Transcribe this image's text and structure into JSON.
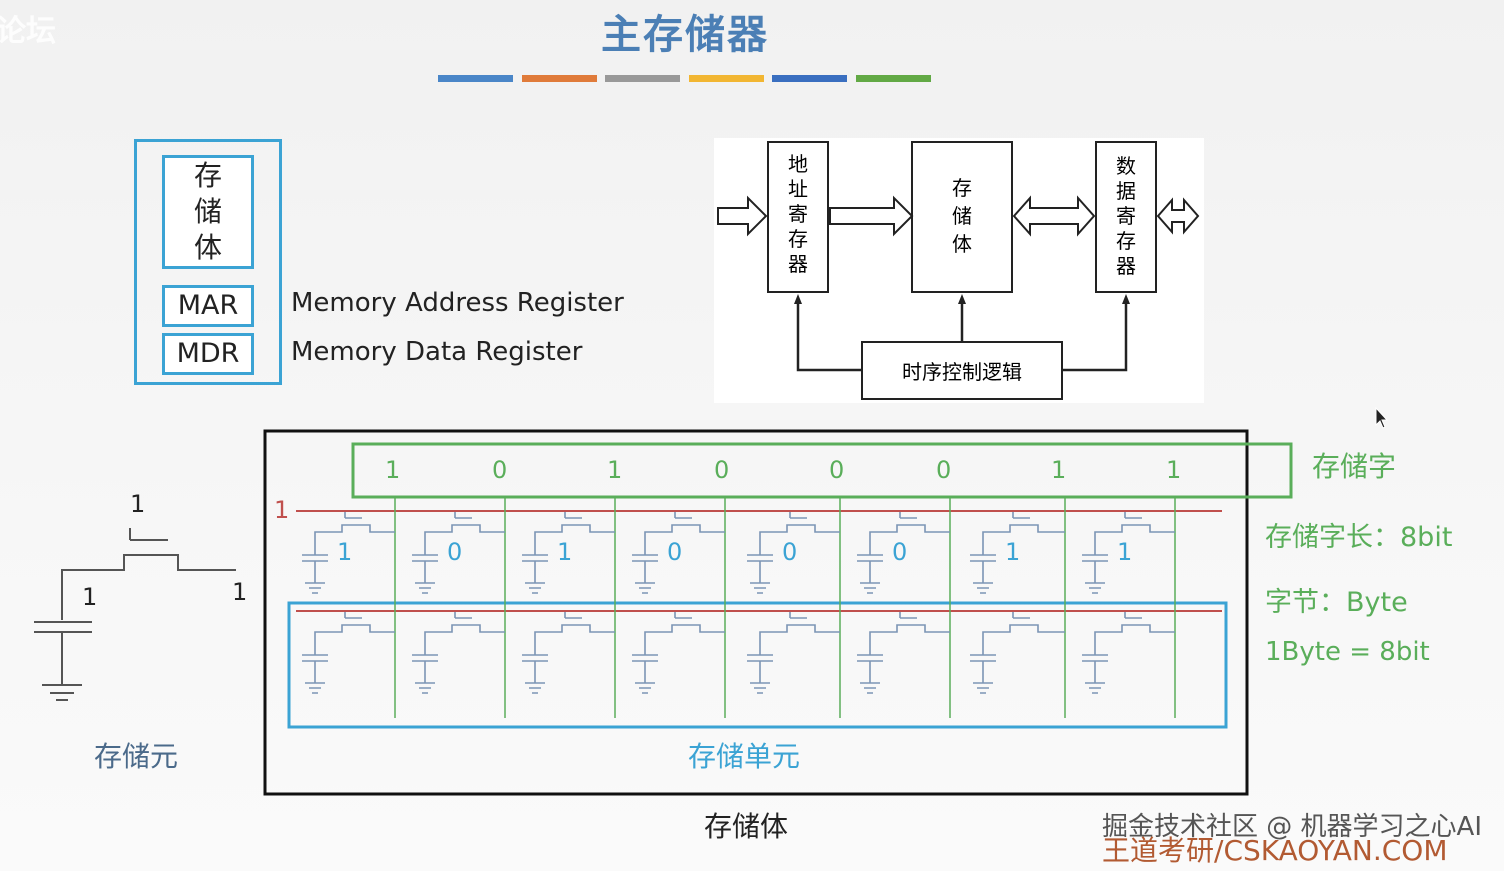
{
  "slide": {
    "title": "主存储器",
    "top_watermark": "论坛",
    "color_bars": [
      "#4a86c8",
      "#e07b3a",
      "#999999",
      "#f2b632",
      "#3a6fc0",
      "#62a945"
    ],
    "components": {
      "memory_body": "存\n储\n体",
      "mar": "MAR",
      "mdr": "MDR",
      "mar_full": "Memory Address Register",
      "mdr_full": "Memory Data Register"
    },
    "block_diagram": {
      "address_register": "地\n址\n寄\n存\n器",
      "memory": "存\n储\n体",
      "data_register": "数\n据\n寄\n存\n器",
      "timing_control": "时序控制逻辑"
    },
    "cell": {
      "gate_value": "1",
      "left_value": "1",
      "right_value": "1",
      "label": "存储元"
    },
    "array": {
      "word_bits": [
        "1",
        "0",
        "1",
        "0",
        "0",
        "0",
        "1",
        "1"
      ],
      "row_select": "1",
      "stored_bits": [
        "1",
        "0",
        "1",
        "0",
        "0",
        "0",
        "1",
        "1"
      ],
      "unit_label": "存储单元",
      "body_label": "存储体"
    },
    "notes": {
      "word": "存储字",
      "word_length": "存储字长：8bit",
      "byte": "字节：Byte",
      "byte_def": "1Byte = 8bit"
    },
    "watermark": {
      "line1": "掘金技术社区 @ 机器学习之心AI",
      "line2": "王道考研/CSKAOYAN.COM"
    }
  }
}
